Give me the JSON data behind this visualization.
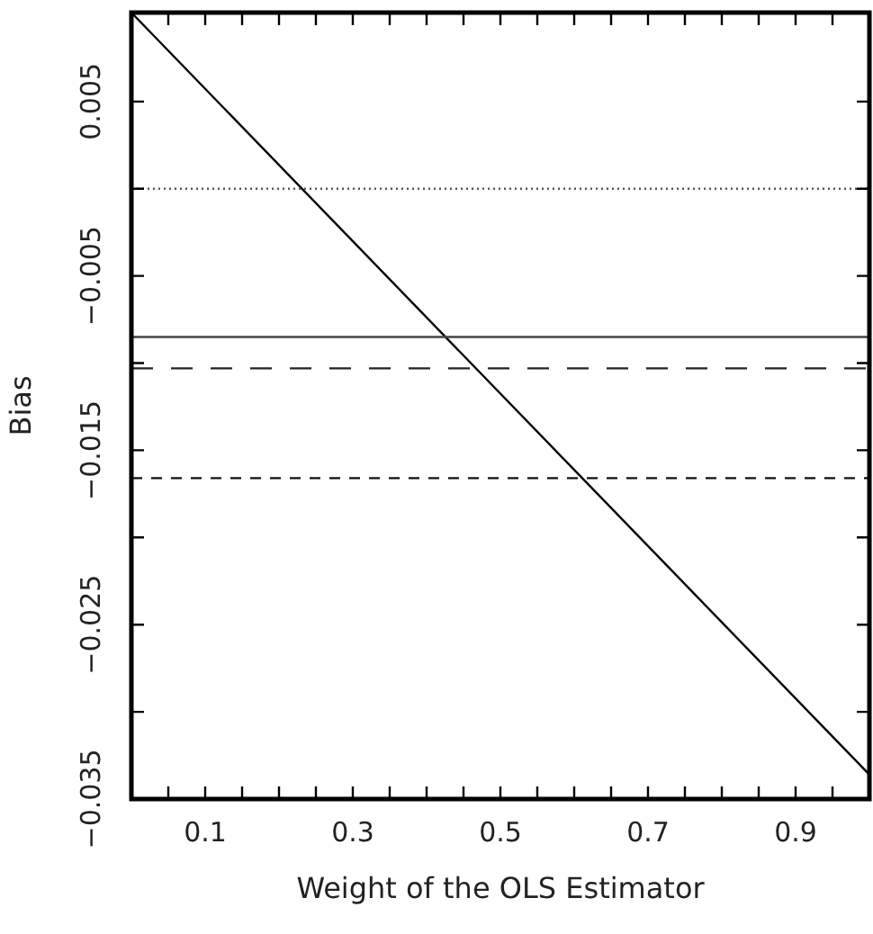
{
  "chart_data": {
    "type": "line",
    "xlabel": "Weight of the OLS Estimator",
    "ylabel": "Bias",
    "xlim": [
      0,
      1
    ],
    "ylim": [
      -0.035,
      0.0101
    ],
    "xticks": [
      {
        "value": 0.05,
        "label": null
      },
      {
        "value": 0.1,
        "label": "0.1"
      },
      {
        "value": 0.15,
        "label": null
      },
      {
        "value": 0.2,
        "label": null
      },
      {
        "value": 0.25,
        "label": null
      },
      {
        "value": 0.3,
        "label": "0.3"
      },
      {
        "value": 0.35,
        "label": null
      },
      {
        "value": 0.4,
        "label": null
      },
      {
        "value": 0.45,
        "label": null
      },
      {
        "value": 0.5,
        "label": "0.5"
      },
      {
        "value": 0.55,
        "label": null
      },
      {
        "value": 0.6,
        "label": null
      },
      {
        "value": 0.65,
        "label": null
      },
      {
        "value": 0.7,
        "label": "0.7"
      },
      {
        "value": 0.75,
        "label": null
      },
      {
        "value": 0.8,
        "label": null
      },
      {
        "value": 0.85,
        "label": null
      },
      {
        "value": 0.9,
        "label": "0.9"
      },
      {
        "value": 0.95,
        "label": null
      }
    ],
    "yticks": [
      {
        "value": -0.035,
        "label": "−0.035"
      },
      {
        "value": -0.03,
        "label": null
      },
      {
        "value": -0.025,
        "label": "−0.025"
      },
      {
        "value": -0.02,
        "label": null
      },
      {
        "value": -0.015,
        "label": "−0.015"
      },
      {
        "value": -0.01,
        "label": null
      },
      {
        "value": -0.005,
        "label": "−0.005"
      },
      {
        "value": 0,
        "label": null
      },
      {
        "value": 0.005,
        "label": "0.005"
      }
    ],
    "grid": false,
    "legend": false,
    "marker": "none",
    "series": [
      {
        "color": "#000000",
        "x": [
          0,
          1
        ],
        "values": [
          0.0101,
          -0.0336
        ],
        "line_style": "solid"
      }
    ],
    "ref_lines": [
      {
        "axis": "y",
        "value": 0,
        "color": "#555555",
        "line_style": "dotted"
      },
      {
        "axis": "y",
        "value": -0.0085,
        "color": "#444444",
        "line_style": "solid"
      },
      {
        "axis": "y",
        "value": -0.0103,
        "color": "#222222",
        "line_style": "dashed"
      },
      {
        "axis": "y",
        "value": -0.0166,
        "color": "#111111",
        "line_style": "short-dashed"
      }
    ]
  }
}
